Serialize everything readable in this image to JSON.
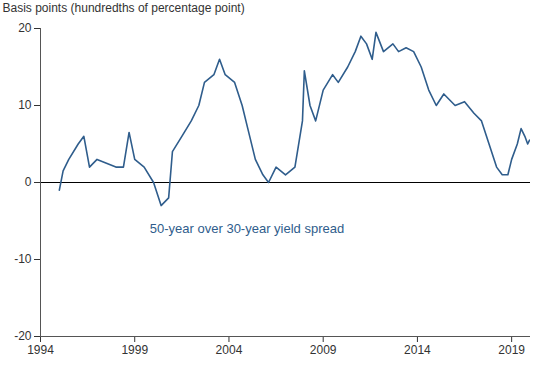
{
  "chart_data": {
    "type": "line",
    "y_label": "Basis points (hundredths of percentage point)",
    "annotations": [
      {
        "text": "50-year over 30-year yield spread",
        "x": 1999.8,
        "y": -6
      }
    ],
    "x": [
      1995.0,
      1995.2,
      1995.5,
      1996.0,
      1996.3,
      1996.6,
      1997.0,
      1997.5,
      1998.0,
      1998.4,
      1998.7,
      1999.0,
      1999.5,
      2000.0,
      2000.4,
      2000.8,
      2001.0,
      2001.5,
      2002.0,
      2002.4,
      2002.7,
      2003.2,
      2003.5,
      2003.8,
      2004.3,
      2004.7,
      2005.0,
      2005.4,
      2005.8,
      2006.1,
      2006.5,
      2007.0,
      2007.5,
      2007.9,
      2008.0,
      2008.3,
      2008.6,
      2009.0,
      2009.5,
      2009.8,
      2010.3,
      2010.7,
      2011.0,
      2011.3,
      2011.6,
      2011.8,
      2012.2,
      2012.7,
      2013.0,
      2013.4,
      2013.8,
      2014.2,
      2014.6,
      2015.0,
      2015.4,
      2016.0,
      2016.5,
      2017.0,
      2017.4,
      2017.8,
      2018.2,
      2018.5,
      2018.8,
      2019.0,
      2019.3,
      2019.5,
      2019.7,
      2019.85,
      2019.95
    ],
    "series": [
      {
        "name": "50-year over 30-year yield spread",
        "color": "#2f5d8c",
        "values": [
          -1,
          1.5,
          3,
          5,
          6,
          2,
          3,
          2.5,
          2,
          2,
          6.5,
          3,
          2,
          0,
          -3,
          -2,
          4,
          6,
          8,
          10,
          13,
          14,
          16,
          14,
          13,
          10,
          7,
          3,
          1,
          0,
          2,
          1,
          2,
          8,
          14.5,
          10,
          8,
          12,
          14,
          13,
          15,
          17,
          19,
          18,
          16,
          19.5,
          17,
          18,
          17,
          17.5,
          17,
          15,
          12,
          10,
          11.5,
          10,
          10.5,
          9,
          8,
          5,
          2,
          1,
          1,
          3,
          5,
          7,
          6,
          5,
          5.5
        ]
      }
    ],
    "xlim": [
      1994,
      2020
    ],
    "xticks": [
      1994,
      1999,
      2004,
      2009,
      2014,
      2019
    ],
    "ylim": [
      -20,
      20
    ],
    "yticks": [
      -20,
      -10,
      0,
      10,
      20
    ],
    "grid": false
  }
}
